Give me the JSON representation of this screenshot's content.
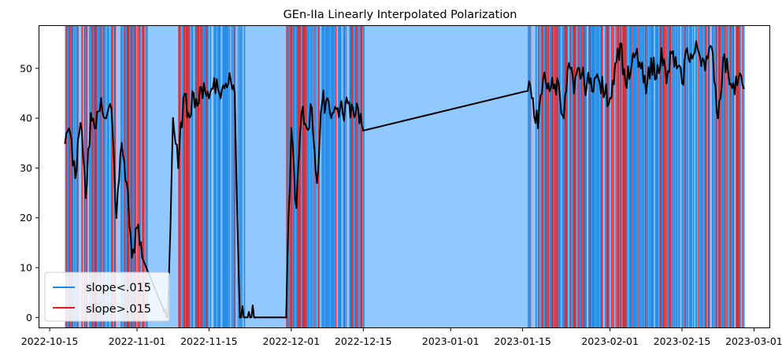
{
  "chart_data": {
    "type": "line",
    "title": "GEn-IIa Linearly Interpolated Polarization",
    "xlabel": "",
    "ylabel": "",
    "x_axis": "date",
    "xlim": [
      "2022-10-13",
      "2023-03-04"
    ],
    "ylim": [
      -2,
      58.5
    ],
    "x_ticks": [
      "2022-10-15",
      "2022-11-01",
      "2022-11-15",
      "2022-12-01",
      "2022-12-15",
      "2023-01-01",
      "2023-01-15",
      "2023-02-01",
      "2023-02-15",
      "2023-03-01"
    ],
    "y_ticks": [
      0,
      10,
      20,
      30,
      40,
      50
    ],
    "grid": false,
    "legend": {
      "placement": "lower-left",
      "entries": [
        {
          "label": "slope<.015",
          "color": "#1e88e5"
        },
        {
          "label": "slope>.015",
          "color": "#e31a1c"
        }
      ]
    },
    "colors": {
      "background_band": "#90c8ff",
      "low_slope": "#1e88e5",
      "high_slope": "#e31a1c",
      "line": "#000000"
    },
    "series": [
      {
        "x": [
          "2022-10-18",
          "2022-10-19",
          "2022-10-20",
          "2022-10-21",
          "2022-10-22",
          "2022-10-23",
          "2022-10-24",
          "2022-10-25",
          "2022-10-26",
          "2022-10-27",
          "2022-10-28",
          "2022-10-29",
          "2022-10-30",
          "2022-10-31",
          "2022-11-01",
          "2022-11-02",
          "2022-11-06",
          "2022-11-07",
          "2022-11-08",
          "2022-11-09",
          "2022-11-10",
          "2022-11-11",
          "2022-11-12",
          "2022-11-13",
          "2022-11-14",
          "2022-11-15",
          "2022-11-16",
          "2022-11-17",
          "2022-11-18",
          "2022-11-19",
          "2022-11-20",
          "2022-11-21",
          "2022-11-22",
          "2022-11-23",
          "2022-11-24",
          "2022-11-30",
          "2022-12-01",
          "2022-12-02",
          "2022-12-03",
          "2022-12-04",
          "2022-12-05",
          "2022-12-06",
          "2022-12-07",
          "2022-12-08",
          "2022-12-09",
          "2022-12-10",
          "2022-12-11",
          "2022-12-12",
          "2022-12-13",
          "2022-12-14",
          "2022-12-15",
          "2023-01-16",
          "2023-01-17",
          "2023-01-18",
          "2023-01-19",
          "2023-01-20",
          "2023-01-21",
          "2023-01-22",
          "2023-01-23",
          "2023-01-24",
          "2023-01-25",
          "2023-01-26",
          "2023-01-27",
          "2023-01-28",
          "2023-01-29",
          "2023-01-30",
          "2023-01-31",
          "2023-02-01",
          "2023-02-02",
          "2023-02-03",
          "2023-02-04",
          "2023-02-05",
          "2023-02-06",
          "2023-02-07",
          "2023-02-08",
          "2023-02-09",
          "2023-02-10",
          "2023-02-11",
          "2023-02-12",
          "2023-02-13",
          "2023-02-14",
          "2023-02-15",
          "2023-02-16",
          "2023-02-17",
          "2023-02-18",
          "2023-02-19",
          "2023-02-20",
          "2023-02-21",
          "2023-02-22",
          "2023-02-23",
          "2023-02-24",
          "2023-02-25",
          "2023-02-26",
          "2023-02-27"
        ],
        "y": [
          35,
          37,
          28,
          39,
          24,
          41,
          38,
          44,
          40,
          42,
          20,
          35,
          27,
          12,
          18,
          12,
          2,
          0,
          40,
          30,
          44,
          41,
          45,
          43,
          47,
          44,
          48,
          45,
          46,
          49,
          45,
          0,
          0,
          0,
          0,
          0,
          38,
          22,
          41,
          38,
          42,
          27,
          43,
          44,
          41,
          42,
          41,
          43,
          42,
          42,
          37.5,
          45.5,
          44,
          38,
          48,
          47,
          46,
          47,
          40,
          51,
          45,
          50,
          47,
          47,
          48,
          47,
          45,
          44,
          51,
          55,
          47,
          49,
          53,
          50,
          45,
          52,
          48,
          54,
          47,
          53,
          50,
          47,
          54,
          52,
          54,
          52,
          52,
          53,
          40,
          52,
          49,
          47,
          48,
          46
        ]
      }
    ]
  }
}
